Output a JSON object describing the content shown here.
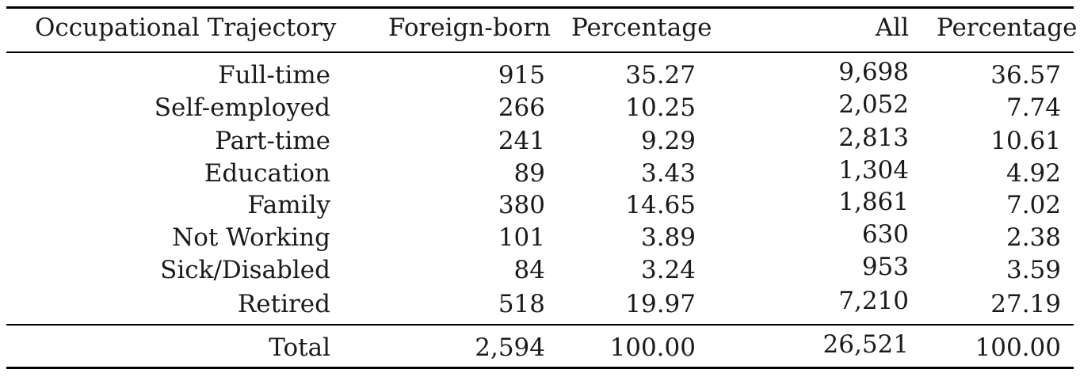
{
  "table": {
    "headers": [
      "Occupational Trajectory",
      "Foreign-born",
      "Percentage",
      "All",
      "Percentage"
    ],
    "rows": [
      [
        "Full-time",
        "915",
        "35.27",
        "9,698",
        "36.57"
      ],
      [
        "Self-employed",
        "266",
        "10.25",
        "2,052",
        "7.74"
      ],
      [
        "Part-time",
        "241",
        "9.29",
        "2,813",
        "10.61"
      ],
      [
        "Education",
        "89",
        "3.43",
        "1,304",
        "4.92"
      ],
      [
        "Family",
        "380",
        "14.65",
        "1,861",
        "7.02"
      ],
      [
        "Not Working",
        "101",
        "3.89",
        "630",
        "2.38"
      ],
      [
        "Sick/Disabled",
        "84",
        "3.24",
        "953",
        "3.59"
      ],
      [
        "Retired",
        "518",
        "19.97",
        "7,210",
        "27.19"
      ]
    ],
    "total": [
      "Total",
      "2,594",
      "100.00",
      "26,521",
      "100.00"
    ]
  }
}
